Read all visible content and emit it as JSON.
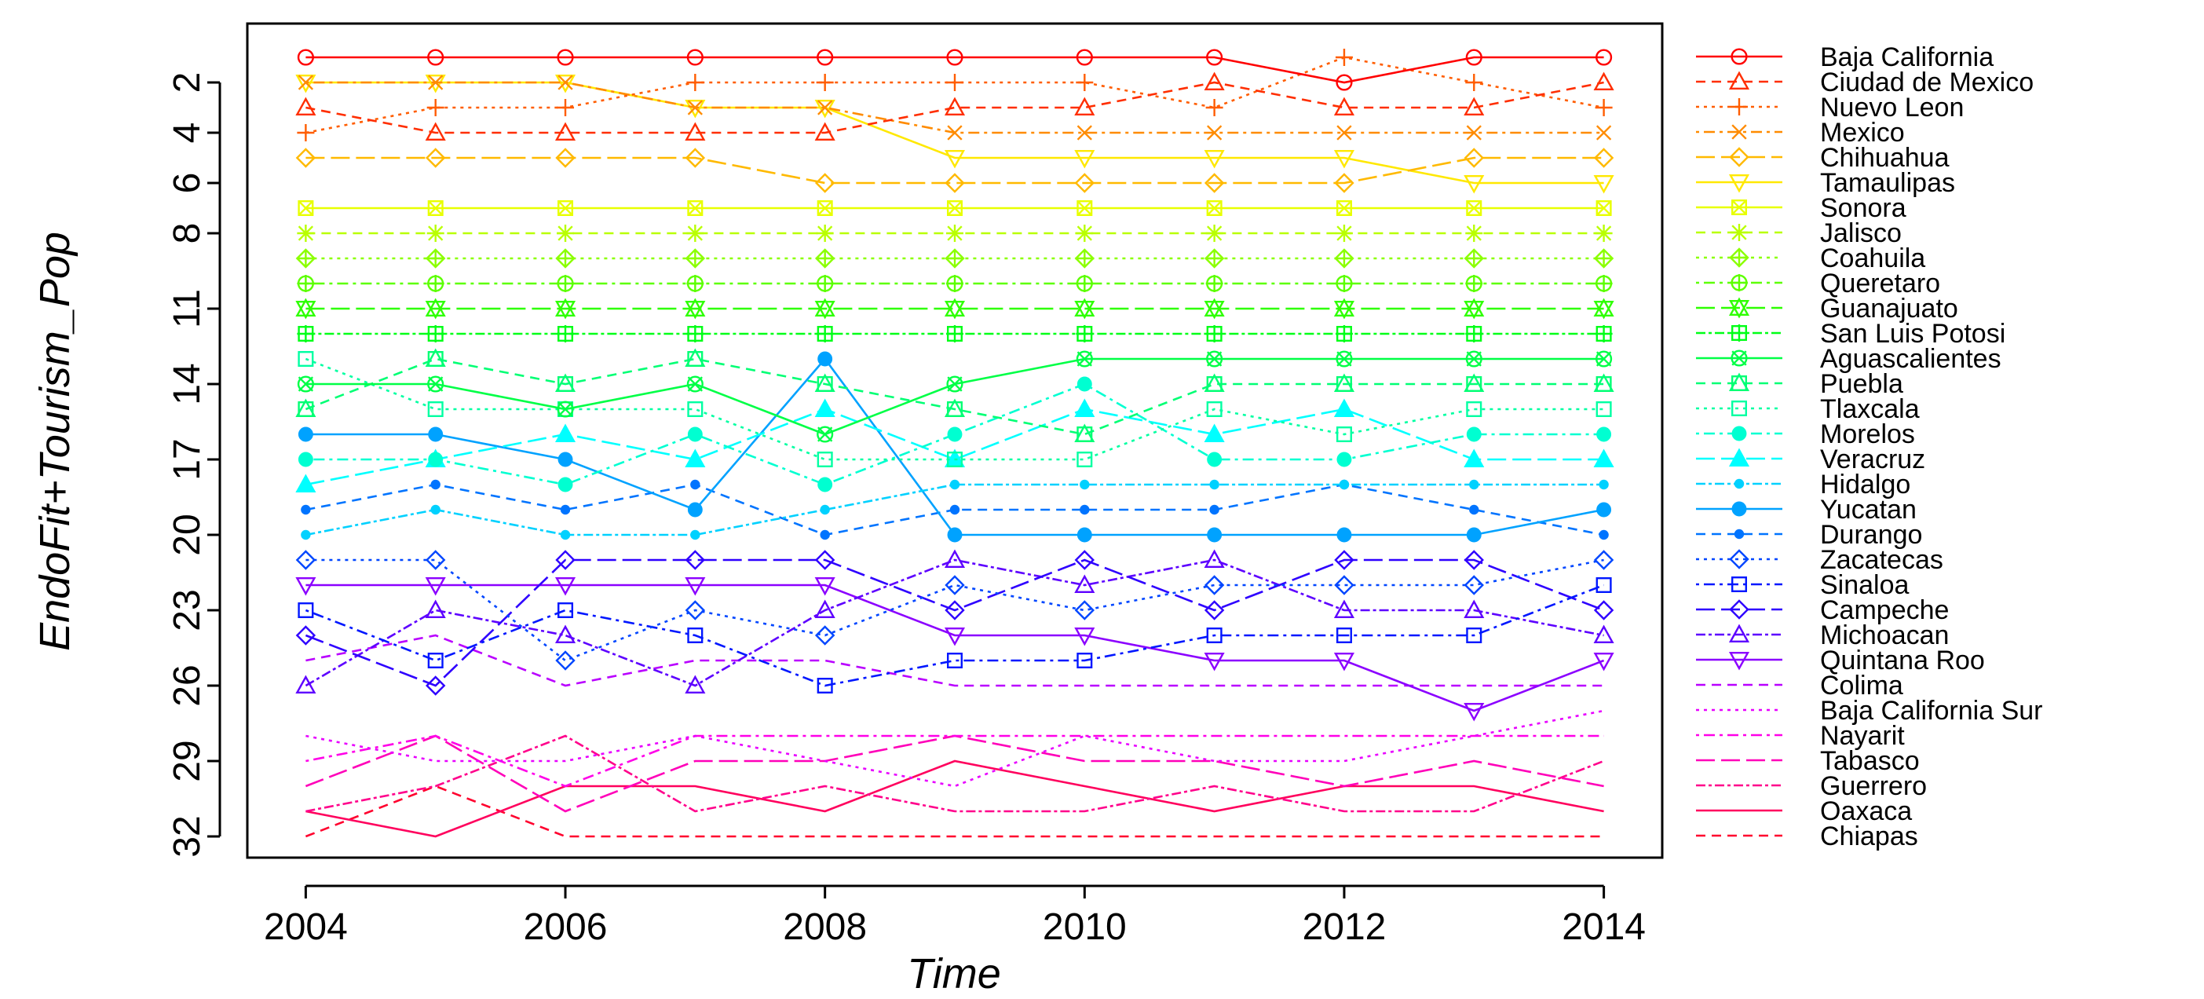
{
  "chart_data": {
    "type": "line",
    "title": "",
    "xlabel": "Time",
    "ylabel": "EndoFit+Tourism_Pop",
    "x": [
      2004,
      2005,
      2006,
      2007,
      2008,
      2009,
      2010,
      2011,
      2012,
      2013,
      2014
    ],
    "x_ticks": [
      2004,
      2006,
      2008,
      2010,
      2012,
      2014
    ],
    "y_ticks": [
      2,
      4,
      6,
      8,
      11,
      14,
      17,
      20,
      23,
      26,
      29,
      32
    ],
    "ylim": [
      0,
      32
    ],
    "y_reversed": true,
    "legend_position": "right",
    "series": [
      {
        "name": "Baja California",
        "color": "#FF0000",
        "dash": "",
        "marker": "circle",
        "values": [
          1,
          1,
          1,
          1,
          1,
          1,
          1,
          1,
          2,
          1,
          1
        ]
      },
      {
        "name": "Ciudad de Mexico",
        "color": "#FF2E00",
        "dash": "12,8",
        "marker": "triangle-up",
        "values": [
          3,
          4,
          4,
          4,
          4,
          3,
          3,
          2,
          3,
          3,
          2
        ]
      },
      {
        "name": "Nuevo Leon",
        "color": "#FF5D00",
        "dash": "4,6",
        "marker": "plus",
        "values": [
          4,
          3,
          3,
          2,
          2,
          2,
          2,
          3,
          1,
          2,
          3
        ]
      },
      {
        "name": "Mexico",
        "color": "#FF8B00",
        "dash": "4,6,14,6",
        "marker": "x",
        "values": [
          2,
          2,
          2,
          3,
          3,
          4,
          4,
          4,
          4,
          4,
          4
        ]
      },
      {
        "name": "Chihuahua",
        "color": "#FFB900",
        "dash": "24,8",
        "marker": "diamond",
        "values": [
          5,
          5,
          5,
          5,
          6,
          6,
          6,
          6,
          6,
          5,
          5
        ]
      },
      {
        "name": "Tamaulipas",
        "color": "#FFE800",
        "dash": "",
        "marker": "triangle-down",
        "values": [
          2,
          2,
          2,
          3,
          3,
          5,
          5,
          5,
          5,
          6,
          6
        ]
      },
      {
        "name": "Sonora",
        "color": "#E8FF00",
        "dash": "",
        "marker": "square-x",
        "values": [
          7,
          7,
          7,
          7,
          7,
          7,
          7,
          7,
          7,
          7,
          7
        ]
      },
      {
        "name": "Jalisco",
        "color": "#B9FF00",
        "dash": "12,8",
        "marker": "star",
        "values": [
          8,
          8,
          8,
          8,
          8,
          8,
          8,
          8,
          8,
          8,
          8
        ]
      },
      {
        "name": "Coahuila",
        "color": "#8BFF00",
        "dash": "4,6",
        "marker": "diamond-plus",
        "values": [
          9,
          9,
          9,
          9,
          9,
          9,
          9,
          9,
          9,
          9,
          9
        ]
      },
      {
        "name": "Queretaro",
        "color": "#5DFF00",
        "dash": "4,6,14,6",
        "marker": "circle-plus",
        "values": [
          10,
          10,
          10,
          10,
          10,
          10,
          10,
          10,
          10,
          10,
          10
        ]
      },
      {
        "name": "Guanajuato",
        "color": "#2EFF00",
        "dash": "24,8",
        "marker": "star-of-david",
        "values": [
          11,
          11,
          11,
          11,
          11,
          11,
          11,
          11,
          11,
          11,
          11
        ]
      },
      {
        "name": "San Luis Potosi",
        "color": "#00FF17",
        "dash": "12,4,4,4",
        "marker": "square-plus",
        "values": [
          12,
          12,
          12,
          12,
          12,
          12,
          12,
          12,
          12,
          12,
          12
        ]
      },
      {
        "name": "Aguascalientes",
        "color": "#00FF46",
        "dash": "",
        "marker": "circle-x",
        "values": [
          14,
          14,
          15,
          14,
          16,
          14,
          13,
          13,
          13,
          13,
          13
        ]
      },
      {
        "name": "Puebla",
        "color": "#00FF74",
        "dash": "12,8",
        "marker": "square-triangle",
        "values": [
          15,
          13,
          14,
          13,
          14,
          15,
          16,
          14,
          14,
          14,
          14
        ]
      },
      {
        "name": "Tlaxcala",
        "color": "#00FFA2",
        "dash": "4,6",
        "marker": "square",
        "values": [
          13,
          15,
          15,
          15,
          17,
          17,
          17,
          15,
          16,
          15,
          15
        ]
      },
      {
        "name": "Morelos",
        "color": "#00FFD1",
        "dash": "4,6,14,6",
        "marker": "filled-circle",
        "values": [
          17,
          17,
          18,
          16,
          18,
          16,
          14,
          17,
          17,
          16,
          16
        ]
      },
      {
        "name": "Veracruz",
        "color": "#00FFFF",
        "dash": "24,8",
        "marker": "filled-triangle",
        "values": [
          18,
          17,
          16,
          17,
          15,
          17,
          15,
          16,
          15,
          17,
          17
        ]
      },
      {
        "name": "Hidalgo",
        "color": "#00D1FF",
        "dash": "12,4,4,4",
        "marker": "small-dot",
        "values": [
          20,
          19,
          20,
          20,
          19,
          18,
          18,
          18,
          18,
          18,
          18
        ]
      },
      {
        "name": "Yucatan",
        "color": "#00A2FF",
        "dash": "",
        "marker": "filled-circle",
        "values": [
          16,
          16,
          17,
          19,
          13,
          20,
          20,
          20,
          20,
          20,
          19
        ]
      },
      {
        "name": "Durango",
        "color": "#0074FF",
        "dash": "12,8",
        "marker": "small-dot",
        "values": [
          19,
          18,
          19,
          18,
          20,
          19,
          19,
          19,
          18,
          19,
          20
        ]
      },
      {
        "name": "Zacatecas",
        "color": "#0046FF",
        "dash": "4,6",
        "marker": "diamond",
        "values": [
          21,
          21,
          25,
          23,
          24,
          22,
          23,
          22,
          22,
          22,
          21
        ]
      },
      {
        "name": "Sinaloa",
        "color": "#0017FF",
        "dash": "4,6,14,6",
        "marker": "square",
        "values": [
          23,
          25,
          23,
          24,
          26,
          25,
          25,
          24,
          24,
          24,
          22
        ]
      },
      {
        "name": "Campeche",
        "color": "#2E00FF",
        "dash": "24,8",
        "marker": "diamond",
        "values": [
          24,
          26,
          21,
          21,
          21,
          23,
          21,
          23,
          21,
          21,
          23
        ]
      },
      {
        "name": "Michoacan",
        "color": "#5D00FF",
        "dash": "12,4,4,4",
        "marker": "triangle-up",
        "values": [
          26,
          23,
          24,
          26,
          23,
          21,
          22,
          21,
          23,
          23,
          24
        ]
      },
      {
        "name": "Quintana Roo",
        "color": "#8B00FF",
        "dash": "",
        "marker": "triangle-down",
        "values": [
          22,
          22,
          22,
          22,
          22,
          24,
          24,
          25,
          25,
          27,
          25
        ]
      },
      {
        "name": "Colima",
        "color": "#B900FF",
        "dash": "12,8",
        "marker": "",
        "values": [
          25,
          24,
          26,
          25,
          25,
          26,
          26,
          26,
          26,
          26,
          26
        ]
      },
      {
        "name": "Baja California Sur",
        "color": "#E800FF",
        "dash": "4,6",
        "marker": "",
        "values": [
          28,
          29,
          29,
          28,
          29,
          30,
          28,
          29,
          29,
          28,
          27
        ]
      },
      {
        "name": "Nayarit",
        "color": "#FF00E8",
        "dash": "4,6,14,6",
        "marker": "",
        "values": [
          29,
          28,
          30,
          28,
          28,
          28,
          28,
          28,
          28,
          28,
          28
        ]
      },
      {
        "name": "Tabasco",
        "color": "#FF00B9",
        "dash": "24,8",
        "marker": "",
        "values": [
          30,
          28,
          31,
          29,
          29,
          28,
          29,
          29,
          30,
          29,
          30
        ]
      },
      {
        "name": "Guerrero",
        "color": "#FF008B",
        "dash": "12,4,4,4",
        "marker": "",
        "values": [
          31,
          30,
          28,
          31,
          30,
          31,
          31,
          30,
          31,
          31,
          29
        ]
      },
      {
        "name": "Oaxaca",
        "color": "#FF005D",
        "dash": "",
        "marker": "",
        "values": [
          31,
          32,
          30,
          30,
          31,
          29,
          30,
          31,
          30,
          30,
          31
        ]
      },
      {
        "name": "Chiapas",
        "color": "#FF002E",
        "dash": "12,8",
        "marker": "",
        "values": [
          32,
          30,
          32,
          32,
          32,
          32,
          32,
          32,
          32,
          32,
          32
        ]
      }
    ]
  }
}
